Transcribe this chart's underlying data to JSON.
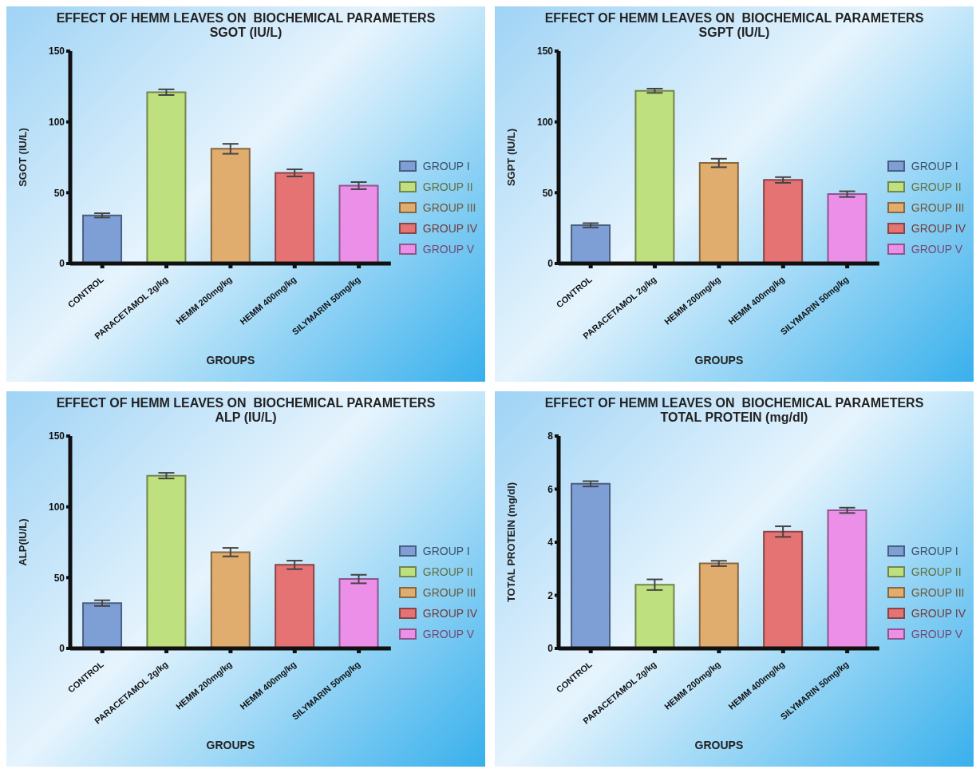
{
  "chart_data": [
    {
      "type": "bar",
      "title": "EFFECT OF HEMM LEAVES ON  BIOCHEMICAL PARAMETERS",
      "subtitle": "SGOT (IU/L)",
      "xlabel": "GROUPS",
      "ylabel": "SGOT (IU/L)",
      "categories": [
        "CONTROL",
        "PARACETAMOL 2g/kg",
        "HEMM 200mg/kg",
        "HEMM 400mg/kg",
        "SILYMARIN 50mg/kg"
      ],
      "stacked": true,
      "ylim": [
        0,
        150
      ],
      "yticks": [
        0,
        50,
        100,
        150
      ],
      "grid": false,
      "legend": "right",
      "series": [
        {
          "name": "GROUP I",
          "color": "#7e9fd6",
          "values": [
            34,
            null,
            null,
            null,
            null
          ],
          "errors": [
            1.5,
            null,
            null,
            null,
            null
          ]
        },
        {
          "name": "GROUP II",
          "color": "#bfe07f",
          "values": [
            null,
            121,
            null,
            null,
            null
          ],
          "errors": [
            null,
            2,
            null,
            null,
            null
          ]
        },
        {
          "name": "GROUP III",
          "color": "#e0ad6e",
          "values": [
            null,
            null,
            81,
            null,
            null
          ],
          "errors": [
            null,
            null,
            3.5,
            null,
            null
          ]
        },
        {
          "name": "GROUP IV",
          "color": "#e57373",
          "values": [
            null,
            null,
            null,
            64,
            null
          ],
          "errors": [
            null,
            null,
            null,
            2.5,
            null
          ]
        },
        {
          "name": "GROUP V",
          "color": "#ec8fe8",
          "values": [
            null,
            null,
            null,
            null,
            55
          ],
          "errors": [
            null,
            null,
            null,
            null,
            2.5
          ]
        }
      ]
    },
    {
      "type": "bar",
      "title": "EFFECT OF HEMM LEAVES ON  BIOCHEMICAL PARAMETERS",
      "subtitle": "SGPT (IU/L)",
      "xlabel": "GROUPS",
      "ylabel": "SGPT (IU/L)",
      "categories": [
        "CONTROL",
        "PARACETAMOL 2g/kg",
        "HEMM 200mg/kg",
        "HEMM 400mg/kg",
        "SILYMARIN 50mg/kg"
      ],
      "stacked": true,
      "ylim": [
        0,
        150
      ],
      "yticks": [
        0,
        50,
        100,
        150
      ],
      "grid": false,
      "legend": "right",
      "series": [
        {
          "name": "GROUP I",
          "color": "#7e9fd6",
          "values": [
            27,
            null,
            null,
            null,
            null
          ],
          "errors": [
            1.5,
            null,
            null,
            null,
            null
          ]
        },
        {
          "name": "GROUP II",
          "color": "#bfe07f",
          "values": [
            null,
            122,
            null,
            null,
            null
          ],
          "errors": [
            null,
            1.5,
            null,
            null,
            null
          ]
        },
        {
          "name": "GROUP III",
          "color": "#e0ad6e",
          "values": [
            null,
            null,
            71,
            null,
            null
          ],
          "errors": [
            null,
            null,
            3,
            null,
            null
          ]
        },
        {
          "name": "GROUP IV",
          "color": "#e57373",
          "values": [
            null,
            null,
            null,
            59,
            null
          ],
          "errors": [
            null,
            null,
            null,
            2,
            null
          ]
        },
        {
          "name": "GROUP V",
          "color": "#ec8fe8",
          "values": [
            null,
            null,
            null,
            null,
            49
          ],
          "errors": [
            null,
            null,
            null,
            null,
            2
          ]
        }
      ]
    },
    {
      "type": "bar",
      "title": "EFFECT OF HEMM LEAVES ON  BIOCHEMICAL PARAMETERS",
      "subtitle": "ALP (IU/L)",
      "xlabel": "GROUPS",
      "ylabel": "ALP(IU/L)",
      "categories": [
        "CONTROL",
        "PARACETAMOL 2g/kg",
        "HEMM 200mg/kg",
        "HEMM 400mg/kg",
        "SILYMARIN 50mg/kg"
      ],
      "stacked": true,
      "ylim": [
        0,
        150
      ],
      "yticks": [
        0,
        50,
        100,
        150
      ],
      "grid": false,
      "legend": "right",
      "series": [
        {
          "name": "GROUP I",
          "color": "#7e9fd6",
          "values": [
            32,
            null,
            null,
            null,
            null
          ],
          "errors": [
            2,
            null,
            null,
            null,
            null
          ]
        },
        {
          "name": "GROUP II",
          "color": "#bfe07f",
          "values": [
            null,
            122,
            null,
            null,
            null
          ],
          "errors": [
            null,
            2,
            null,
            null,
            null
          ]
        },
        {
          "name": "GROUP III",
          "color": "#e0ad6e",
          "values": [
            null,
            null,
            68,
            null,
            null
          ],
          "errors": [
            null,
            null,
            3,
            null,
            null
          ]
        },
        {
          "name": "GROUP IV",
          "color": "#e57373",
          "values": [
            null,
            null,
            null,
            59,
            null
          ],
          "errors": [
            null,
            null,
            null,
            3,
            null
          ]
        },
        {
          "name": "GROUP V",
          "color": "#ec8fe8",
          "values": [
            null,
            null,
            null,
            null,
            49
          ],
          "errors": [
            null,
            null,
            null,
            null,
            3
          ]
        }
      ]
    },
    {
      "type": "bar",
      "title": "EFFECT OF HEMM LEAVES ON  BIOCHEMICAL PARAMETERS",
      "subtitle": "TOTAL PROTEIN (mg/dl)",
      "xlabel": "GROUPS",
      "ylabel": "TOTAL PROTEIN (mg/dl)",
      "categories": [
        "CONTROL",
        "PARACETAMOL 2g/kg",
        "HEMM 200mg/kg",
        "HEMM 400mg/kg",
        "SILYMARIN 50mg/kg"
      ],
      "stacked": true,
      "ylim": [
        0,
        8
      ],
      "yticks": [
        0,
        2,
        4,
        6,
        8
      ],
      "grid": false,
      "legend": "right",
      "series": [
        {
          "name": "GROUP I",
          "color": "#7e9fd6",
          "values": [
            6.2,
            null,
            null,
            null,
            null
          ],
          "errors": [
            0.1,
            null,
            null,
            null,
            null
          ]
        },
        {
          "name": "GROUP II",
          "color": "#bfe07f",
          "values": [
            null,
            2.4,
            null,
            null,
            null
          ],
          "errors": [
            null,
            0.2,
            null,
            null,
            null
          ]
        },
        {
          "name": "GROUP III",
          "color": "#e0ad6e",
          "values": [
            null,
            null,
            3.2,
            null,
            null
          ],
          "errors": [
            null,
            null,
            0.1,
            null,
            null
          ]
        },
        {
          "name": "GROUP IV",
          "color": "#e57373",
          "values": [
            null,
            null,
            null,
            4.4,
            null
          ],
          "errors": [
            null,
            null,
            null,
            0.2,
            null
          ]
        },
        {
          "name": "GROUP V",
          "color": "#ec8fe8",
          "values": [
            null,
            null,
            null,
            null,
            5.2
          ],
          "errors": [
            null,
            null,
            null,
            null,
            0.1
          ]
        }
      ]
    }
  ]
}
